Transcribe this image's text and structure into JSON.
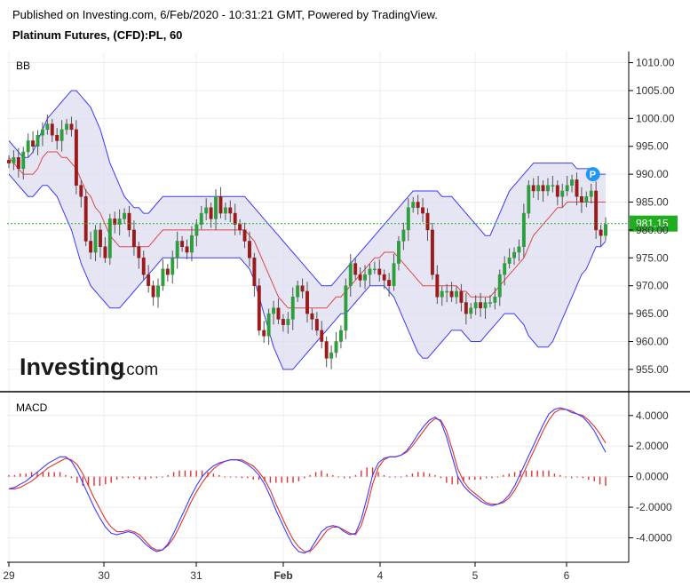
{
  "header": {
    "published": "Published on Investing.com, 6/Feb/2020 - 10:31:21 GMT, Powered by TradingView.",
    "instrument": "Platinum Futures, (CFD):PL, 60"
  },
  "logo": {
    "main": "Investing",
    "suffix": ".com"
  },
  "colors": {
    "bull": "#2e9e3e",
    "bear": "#9b1a1a",
    "band_fill": "#dcdcf0",
    "band_line": "#3a3aff",
    "mid_line": "#e04848",
    "price_line": "#22b022",
    "macd_line": "#3a3aff",
    "signal_line": "#e03030",
    "hist": "#e03030",
    "marker": "#2196f3"
  },
  "chart_data": [
    {
      "type": "candlestick",
      "panel_label": "BB",
      "indicator": "Bollinger Bands",
      "ylim": [
        951,
        1012
      ],
      "y_ticks": [
        "1010.00",
        "1005.00",
        "1000.00",
        "995.00",
        "990.00",
        "985.00",
        "980.00",
        "975.00",
        "970.00",
        "965.00",
        "960.00",
        "955.00"
      ],
      "last_price": "981.15",
      "marker_label": "P",
      "x_labels": [
        "29",
        "30",
        "31",
        "Feb",
        "4",
        "5",
        "6"
      ],
      "grid": true,
      "close": [
        992,
        993,
        991,
        994,
        996,
        995,
        997,
        998,
        999,
        997,
        996,
        998,
        999,
        998,
        988,
        986,
        978,
        976,
        980,
        977,
        975,
        982,
        981,
        982,
        983,
        980,
        977,
        975,
        972,
        970,
        968,
        970,
        973,
        972,
        975,
        978,
        977,
        976,
        979,
        981,
        983,
        984,
        982,
        986,
        983,
        984,
        983,
        981,
        980,
        978,
        975,
        970,
        962,
        961,
        965,
        966,
        964,
        963,
        964,
        968,
        970,
        969,
        965,
        964,
        962,
        960,
        957,
        958,
        960,
        962,
        970,
        974,
        972,
        971,
        972,
        973,
        973,
        972,
        971,
        970,
        974,
        978,
        980,
        984,
        985,
        984,
        983,
        980,
        972,
        968,
        969,
        969,
        968,
        969,
        967,
        965,
        966,
        967,
        966,
        967,
        967,
        968,
        972,
        974,
        975,
        976,
        977,
        983,
        988,
        987,
        988,
        987,
        988,
        988,
        986,
        987,
        988,
        989,
        986,
        985,
        986,
        987,
        980,
        979,
        981
      ],
      "bb_upper": [
        996,
        995,
        994,
        993,
        993,
        994,
        996,
        998,
        1000,
        1001,
        1002,
        1003,
        1004,
        1005,
        1005,
        1004,
        1003,
        1002,
        1000,
        998,
        995,
        992,
        990,
        988,
        986,
        985,
        984,
        984,
        983,
        983,
        984,
        985,
        986,
        986,
        986,
        986,
        986,
        986,
        986,
        986,
        986,
        986,
        986,
        986,
        986,
        986,
        986,
        986,
        986,
        986,
        985,
        984,
        983,
        982,
        981,
        980,
        979,
        978,
        977,
        976,
        975,
        974,
        973,
        972,
        971,
        970,
        970,
        970,
        971,
        972,
        973,
        974,
        975,
        976,
        977,
        978,
        979,
        980,
        981,
        982,
        983,
        984,
        985,
        986,
        987,
        987,
        987,
        987,
        987,
        987,
        986,
        986,
        986,
        985,
        984,
        983,
        982,
        981,
        980,
        979,
        979,
        981,
        983,
        985,
        987,
        988,
        989,
        990,
        991,
        992,
        992,
        992,
        992,
        992,
        992,
        992,
        992,
        992,
        991,
        991,
        991,
        991,
        990,
        990,
        990
      ],
      "bb_lower": [
        990,
        989,
        988,
        987,
        986,
        986,
        987,
        988,
        988,
        987,
        986,
        984,
        982,
        980,
        977,
        974,
        972,
        970,
        969,
        968,
        967,
        966,
        966,
        966,
        967,
        968,
        969,
        970,
        971,
        972,
        973,
        974,
        975,
        975,
        975,
        975,
        975,
        975,
        975,
        975,
        975,
        975,
        975,
        975,
        975,
        975,
        975,
        975,
        975,
        974,
        973,
        971,
        968,
        965,
        962,
        959,
        957,
        955,
        955,
        955,
        956,
        957,
        958,
        959,
        960,
        961,
        962,
        963,
        964,
        965,
        965,
        966,
        967,
        968,
        969,
        970,
        970,
        970,
        970,
        969,
        968,
        966,
        964,
        962,
        960,
        958,
        957,
        957,
        958,
        959,
        960,
        961,
        962,
        962,
        962,
        961,
        960,
        960,
        960,
        961,
        962,
        963,
        964,
        965,
        965,
        965,
        964,
        963,
        961,
        960,
        959,
        959,
        959,
        960,
        962,
        964,
        966,
        968,
        970,
        972,
        973,
        975,
        977,
        977,
        978
      ],
      "bb_mid": [
        993,
        992,
        991,
        990,
        990,
        990,
        991,
        993,
        994,
        994,
        994,
        993,
        993,
        992,
        991,
        989,
        987,
        986,
        984,
        983,
        981,
        979,
        978,
        977,
        977,
        977,
        977,
        977,
        977,
        977,
        978,
        979,
        980,
        980,
        980,
        980,
        980,
        980,
        980,
        980,
        980,
        980,
        980,
        980,
        980,
        980,
        980,
        980,
        980,
        980,
        979,
        978,
        976,
        974,
        972,
        970,
        968,
        967,
        966,
        966,
        966,
        966,
        966,
        966,
        966,
        966,
        966,
        967,
        968,
        968,
        969,
        970,
        971,
        972,
        973,
        974,
        975,
        975,
        976,
        976,
        976,
        975,
        974,
        973,
        972,
        971,
        970,
        970,
        970,
        970,
        970,
        970,
        970,
        970,
        969,
        969,
        968,
        968,
        968,
        968,
        968,
        969,
        970,
        971,
        972,
        973,
        974,
        975,
        977,
        979,
        980,
        981,
        982,
        983,
        984,
        984,
        985,
        985,
        985,
        985,
        985,
        985,
        985,
        985,
        985
      ]
    },
    {
      "type": "line",
      "panel_label": "MACD",
      "ylim": [
        -5.6,
        5.5
      ],
      "y_ticks": [
        "4.0000",
        "2.0000",
        "0.0000",
        "-2.0000",
        "-4.0000"
      ],
      "series": [
        {
          "values": [
            -0.8,
            -0.7,
            -0.5,
            -0.3,
            0.0,
            0.3,
            0.6,
            0.9,
            1.1,
            1.3,
            1.3,
            1.0,
            0.4,
            -0.4,
            -1.2,
            -2.0,
            -2.7,
            -3.3,
            -3.7,
            -3.8,
            -3.7,
            -3.6,
            -3.7,
            -4.0,
            -4.4,
            -4.7,
            -4.9,
            -4.8,
            -4.4,
            -3.7,
            -2.9,
            -2.1,
            -1.3,
            -0.6,
            0.0,
            0.4,
            0.7,
            0.9,
            1.0,
            1.1,
            1.1,
            1.0,
            0.8,
            0.5,
            0.1,
            -0.5,
            -1.3,
            -2.2,
            -3.0,
            -3.8,
            -4.5,
            -4.9,
            -5.0,
            -4.8,
            -4.2,
            -3.6,
            -3.3,
            -3.2,
            -3.3,
            -3.6,
            -3.8,
            -3.7,
            -2.8,
            -1.4,
            0.1,
            0.9,
            1.2,
            1.3,
            1.3,
            1.4,
            1.7,
            2.2,
            2.8,
            3.3,
            3.7,
            3.9,
            3.6,
            2.6,
            1.3,
            0.0,
            -0.6,
            -1.0,
            -1.3,
            -1.6,
            -1.8,
            -1.9,
            -1.8,
            -1.6,
            -1.2,
            -0.6,
            0.2,
            1.0,
            1.8,
            2.6,
            3.4,
            4.1,
            4.4,
            4.5,
            4.4,
            4.2,
            4.1,
            3.9,
            3.5,
            3.0,
            2.3,
            1.6
          ]
        },
        {
          "values": [
            -0.8,
            -0.8,
            -0.7,
            -0.5,
            -0.3,
            0.0,
            0.3,
            0.6,
            0.8,
            1.0,
            1.2,
            1.1,
            0.8,
            0.2,
            -0.6,
            -1.4,
            -2.1,
            -2.8,
            -3.3,
            -3.6,
            -3.6,
            -3.5,
            -3.6,
            -3.8,
            -4.2,
            -4.6,
            -4.8,
            -4.8,
            -4.5,
            -4.0,
            -3.3,
            -2.5,
            -1.7,
            -1.0,
            -0.4,
            0.1,
            0.5,
            0.8,
            1.0,
            1.1,
            1.1,
            1.1,
            0.9,
            0.7,
            0.3,
            -0.2,
            -0.9,
            -1.8,
            -2.6,
            -3.4,
            -4.1,
            -4.6,
            -4.9,
            -4.9,
            -4.5,
            -4.0,
            -3.5,
            -3.3,
            -3.3,
            -3.5,
            -3.7,
            -3.8,
            -3.2,
            -2.0,
            -0.5,
            0.6,
            1.1,
            1.3,
            1.3,
            1.4,
            1.6,
            2.0,
            2.5,
            3.0,
            3.5,
            3.8,
            3.7,
            3.0,
            1.8,
            0.5,
            -0.3,
            -0.8,
            -1.1,
            -1.4,
            -1.7,
            -1.8,
            -1.8,
            -1.7,
            -1.4,
            -0.9,
            -0.2,
            0.6,
            1.4,
            2.2,
            3.0,
            3.7,
            4.2,
            4.4,
            4.4,
            4.3,
            4.1,
            4.0,
            3.7,
            3.3,
            2.8,
            2.2
          ]
        }
      ],
      "histogram": [
        0.1,
        0.1,
        0.2,
        0.2,
        0.3,
        0.3,
        0.3,
        0.3,
        0.3,
        0.3,
        0.1,
        -0.1,
        -0.4,
        -0.6,
        -0.6,
        -0.6,
        -0.6,
        -0.5,
        -0.4,
        -0.2,
        -0.1,
        -0.1,
        -0.1,
        -0.2,
        -0.2,
        -0.1,
        -0.1,
        0.0,
        0.1,
        0.3,
        0.4,
        0.4,
        0.4,
        0.4,
        0.4,
        0.3,
        0.2,
        0.1,
        0.0,
        0.0,
        0.0,
        -0.1,
        -0.1,
        -0.2,
        -0.2,
        -0.3,
        -0.4,
        -0.4,
        -0.4,
        -0.4,
        -0.4,
        -0.3,
        -0.1,
        0.1,
        0.3,
        0.4,
        0.2,
        0.1,
        0.0,
        -0.1,
        -0.1,
        0.1,
        0.4,
        0.6,
        0.6,
        0.3,
        0.1,
        0.0,
        0.0,
        0.0,
        0.1,
        0.2,
        0.3,
        0.3,
        0.2,
        0.1,
        -0.1,
        -0.4,
        -0.5,
        -0.5,
        -0.3,
        -0.2,
        -0.2,
        -0.2,
        -0.1,
        -0.1,
        0.0,
        0.1,
        0.2,
        0.3,
        0.4,
        0.4,
        0.4,
        0.4,
        0.4,
        0.4,
        0.2,
        0.1,
        0.0,
        -0.1,
        0.0,
        -0.1,
        -0.2,
        -0.3,
        -0.5,
        -0.6
      ]
    }
  ]
}
